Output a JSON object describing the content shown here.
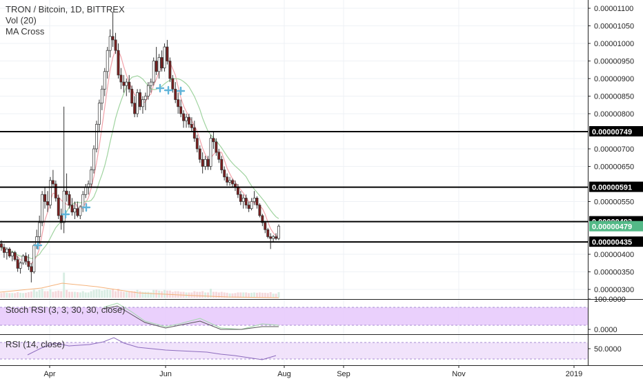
{
  "header": {
    "title": "TRON / Bitcoin, 1D, BITTREX",
    "indicators": [
      "Vol (20)",
      "MA Cross"
    ]
  },
  "panes": {
    "stoch_label": "Stoch RSI (3, 3, 30, 30, close)",
    "rsi_label": "RSI (14, close)",
    "stoch_ticks": [
      "100.0000",
      "0.0000"
    ],
    "rsi_ticks": [
      "50.0000"
    ]
  },
  "colors": {
    "up": "#53b987",
    "down": "#eb4d5c",
    "candle_body_up": "#ffffff",
    "candle_body_down": "#7a1f1f",
    "ma_fast": "#f2a0a8",
    "ma_slow": "#9fd39f",
    "cross": "#5fb4d9",
    "level_line": "#000000",
    "current_price_tag": "#53b987",
    "stoch_band": "#e6c8fb",
    "rsi_band": "#efe0fb"
  },
  "chart_data": {
    "type": "candlestick",
    "title": "TRON / Bitcoin, 1D, BITTREX",
    "y_ticks": [
      "0.00001100",
      "0.00001050",
      "0.00001000",
      "0.00000950",
      "0.00000900",
      "0.00000850",
      "0.00000800",
      "0.00000700",
      "0.00000650",
      "0.00000550",
      "0.00000400",
      "0.00000350",
      "0.00000300"
    ],
    "ylim": [
      2.8e-06,
      1.11e-05
    ],
    "x_ticks": [
      "Apr",
      "Jun",
      "Aug",
      "Sep",
      "Nov",
      "2019"
    ],
    "horizontal_levels": [
      "0.00000749",
      "0.00000591",
      "0.00000493",
      "0.00000435"
    ],
    "current_price": "0.00000479",
    "series": [
      {
        "x": "Mar 8",
        "o": 4.3,
        "h": 4.4,
        "l": 4.1,
        "c": 4.2
      },
      {
        "x": "Mar 9",
        "o": 4.2,
        "h": 4.3,
        "l": 3.9,
        "c": 4.05
      },
      {
        "x": "Mar 10",
        "o": 4.05,
        "h": 4.2,
        "l": 3.85,
        "c": 4.15
      },
      {
        "x": "Mar 11",
        "o": 4.15,
        "h": 4.2,
        "l": 3.9,
        "c": 3.95
      },
      {
        "x": "Mar 12",
        "o": 3.95,
        "h": 4.1,
        "l": 3.8,
        "c": 4.05
      },
      {
        "x": "Mar 13",
        "o": 4.05,
        "h": 4.1,
        "l": 3.8,
        "c": 3.85
      },
      {
        "x": "Mar 14",
        "o": 3.85,
        "h": 3.95,
        "l": 3.5,
        "c": 3.6
      },
      {
        "x": "Mar 15",
        "o": 3.6,
        "h": 3.8,
        "l": 3.45,
        "c": 3.75
      },
      {
        "x": "Mar 16",
        "o": 3.75,
        "h": 4.0,
        "l": 3.7,
        "c": 3.95
      },
      {
        "x": "Mar 17",
        "o": 3.95,
        "h": 4.05,
        "l": 3.7,
        "c": 3.8
      },
      {
        "x": "Mar 18",
        "o": 3.8,
        "h": 4.0,
        "l": 3.55,
        "c": 3.65
      },
      {
        "x": "Mar 19",
        "o": 3.65,
        "h": 3.75,
        "l": 3.2,
        "c": 3.5
      },
      {
        "x": "Mar 20",
        "o": 3.5,
        "h": 4.3,
        "l": 3.45,
        "c": 4.25
      },
      {
        "x": "Mar 21",
        "o": 4.25,
        "h": 4.7,
        "l": 4.15,
        "c": 4.5
      },
      {
        "x": "Mar 22",
        "o": 4.5,
        "h": 5.1,
        "l": 4.3,
        "c": 4.9
      },
      {
        "x": "Mar 23",
        "o": 4.9,
        "h": 5.8,
        "l": 4.8,
        "c": 5.7
      },
      {
        "x": "Mar 24",
        "o": 5.7,
        "h": 5.9,
        "l": 5.3,
        "c": 5.5
      },
      {
        "x": "Mar 25",
        "o": 5.5,
        "h": 5.8,
        "l": 5.2,
        "c": 5.4
      },
      {
        "x": "Mar 26",
        "o": 5.4,
        "h": 6.2,
        "l": 5.3,
        "c": 6.1
      },
      {
        "x": "Mar 27",
        "o": 6.1,
        "h": 6.4,
        "l": 5.9,
        "c": 6.0
      },
      {
        "x": "Mar 28",
        "o": 6.0,
        "h": 6.1,
        "l": 5.5,
        "c": 5.6
      },
      {
        "x": "Mar 29",
        "o": 5.6,
        "h": 5.7,
        "l": 5.0,
        "c": 5.1
      },
      {
        "x": "Mar 30",
        "o": 5.1,
        "h": 5.3,
        "l": 4.7,
        "c": 4.9
      },
      {
        "x": "Mar 31",
        "o": 4.9,
        "h": 8.2,
        "l": 4.6,
        "c": 5.8
      },
      {
        "x": "Apr 1",
        "o": 5.8,
        "h": 6.3,
        "l": 5.5,
        "c": 5.7
      },
      {
        "x": "Apr 2",
        "o": 5.7,
        "h": 5.8,
        "l": 5.3,
        "c": 5.4
      },
      {
        "x": "Apr 3",
        "o": 5.4,
        "h": 5.6,
        "l": 5.1,
        "c": 5.2
      },
      {
        "x": "Apr 4",
        "o": 5.2,
        "h": 5.5,
        "l": 5.0,
        "c": 5.3
      },
      {
        "x": "Apr 5",
        "o": 5.3,
        "h": 5.5,
        "l": 5.05,
        "c": 5.1
      },
      {
        "x": "Apr 6",
        "o": 5.1,
        "h": 5.4,
        "l": 5.0,
        "c": 5.35
      },
      {
        "x": "Apr 7",
        "o": 5.35,
        "h": 5.8,
        "l": 5.2,
        "c": 5.7
      },
      {
        "x": "Apr 8",
        "o": 5.7,
        "h": 6.0,
        "l": 5.6,
        "c": 5.9
      },
      {
        "x": "Apr 9",
        "o": 5.9,
        "h": 6.1,
        "l": 5.7,
        "c": 6.0
      },
      {
        "x": "Apr 10",
        "o": 6.0,
        "h": 6.5,
        "l": 5.9,
        "c": 6.4
      },
      {
        "x": "Apr 11",
        "o": 6.4,
        "h": 7.1,
        "l": 6.3,
        "c": 7.0
      },
      {
        "x": "Apr 12",
        "o": 7.0,
        "h": 7.8,
        "l": 6.9,
        "c": 7.7
      },
      {
        "x": "Apr 13",
        "o": 7.7,
        "h": 8.4,
        "l": 7.5,
        "c": 8.3
      },
      {
        "x": "Apr 14",
        "o": 8.3,
        "h": 8.8,
        "l": 8.1,
        "c": 8.7
      },
      {
        "x": "Apr 15",
        "o": 8.7,
        "h": 9.3,
        "l": 8.5,
        "c": 9.2
      },
      {
        "x": "Apr 16",
        "o": 9.2,
        "h": 9.9,
        "l": 9.0,
        "c": 9.8
      },
      {
        "x": "Apr 17",
        "o": 9.8,
        "h": 10.4,
        "l": 9.6,
        "c": 10.2
      },
      {
        "x": "Apr 18",
        "o": 10.2,
        "h": 10.9,
        "l": 9.9,
        "c": 10.1
      },
      {
        "x": "Apr 19",
        "o": 10.1,
        "h": 10.3,
        "l": 9.7,
        "c": 9.8
      },
      {
        "x": "Apr 20",
        "o": 9.8,
        "h": 10.0,
        "l": 9.0,
        "c": 9.1
      },
      {
        "x": "Apr 21",
        "o": 9.1,
        "h": 9.3,
        "l": 8.7,
        "c": 8.9
      },
      {
        "x": "Apr 22",
        "o": 8.9,
        "h": 9.1,
        "l": 8.6,
        "c": 8.8
      },
      {
        "x": "Apr 23",
        "o": 8.8,
        "h": 9.0,
        "l": 8.5,
        "c": 8.9
      },
      {
        "x": "Apr 24",
        "o": 8.9,
        "h": 9.1,
        "l": 8.6,
        "c": 8.7
      },
      {
        "x": "Apr 25",
        "o": 8.7,
        "h": 8.8,
        "l": 8.2,
        "c": 8.3
      },
      {
        "x": "Apr 26",
        "o": 8.3,
        "h": 8.5,
        "l": 7.9,
        "c": 8.0
      },
      {
        "x": "Apr 27",
        "o": 8.0,
        "h": 8.7,
        "l": 7.9,
        "c": 8.6
      },
      {
        "x": "Apr 28",
        "o": 8.6,
        "h": 8.7,
        "l": 8.1,
        "c": 8.2
      },
      {
        "x": "Apr 29",
        "o": 8.2,
        "h": 8.5,
        "l": 8.0,
        "c": 8.4
      },
      {
        "x": "Apr 30",
        "o": 8.4,
        "h": 8.6,
        "l": 8.1,
        "c": 8.5
      },
      {
        "x": "May 1",
        "o": 8.5,
        "h": 8.9,
        "l": 8.4,
        "c": 8.8
      },
      {
        "x": "May 2",
        "o": 8.8,
        "h": 9.0,
        "l": 8.6,
        "c": 8.9
      },
      {
        "x": "May 3",
        "o": 8.9,
        "h": 9.6,
        "l": 8.8,
        "c": 9.5
      },
      {
        "x": "May 4",
        "o": 9.5,
        "h": 9.9,
        "l": 9.1,
        "c": 9.2
      },
      {
        "x": "May 5",
        "o": 9.2,
        "h": 9.7,
        "l": 9.0,
        "c": 9.6
      },
      {
        "x": "May 6",
        "o": 9.6,
        "h": 9.8,
        "l": 9.2,
        "c": 9.3
      },
      {
        "x": "May 7",
        "o": 9.3,
        "h": 10.0,
        "l": 9.2,
        "c": 9.9
      },
      {
        "x": "May 8",
        "o": 9.9,
        "h": 10.1,
        "l": 9.4,
        "c": 9.5
      },
      {
        "x": "May 9",
        "o": 9.5,
        "h": 9.6,
        "l": 8.9,
        "c": 9.0
      },
      {
        "x": "May 10",
        "o": 9.0,
        "h": 9.1,
        "l": 8.6,
        "c": 8.7
      },
      {
        "x": "May 11",
        "o": 8.7,
        "h": 8.9,
        "l": 8.3,
        "c": 8.4
      },
      {
        "x": "May 12",
        "o": 8.4,
        "h": 8.6,
        "l": 8.0,
        "c": 8.2
      },
      {
        "x": "May 13",
        "o": 8.2,
        "h": 8.4,
        "l": 7.9,
        "c": 8.0
      },
      {
        "x": "May 14",
        "o": 8.0,
        "h": 8.1,
        "l": 7.6,
        "c": 7.8
      },
      {
        "x": "May 15",
        "o": 7.8,
        "h": 8.0,
        "l": 7.6,
        "c": 7.9
      },
      {
        "x": "May 16",
        "o": 7.9,
        "h": 8.0,
        "l": 7.6,
        "c": 7.7
      },
      {
        "x": "May 17",
        "o": 7.7,
        "h": 7.9,
        "l": 7.5,
        "c": 7.6
      },
      {
        "x": "May 18",
        "o": 7.6,
        "h": 7.8,
        "l": 7.2,
        "c": 7.3
      },
      {
        "x": "May 19",
        "o": 7.3,
        "h": 7.4,
        "l": 6.9,
        "c": 7.0
      },
      {
        "x": "May 20",
        "o": 7.0,
        "h": 7.1,
        "l": 6.6,
        "c": 6.7
      },
      {
        "x": "May 21",
        "o": 6.7,
        "h": 6.9,
        "l": 6.3,
        "c": 6.5
      },
      {
        "x": "May 22",
        "o": 6.5,
        "h": 6.8,
        "l": 6.4,
        "c": 6.7
      },
      {
        "x": "May 23",
        "o": 6.7,
        "h": 6.8,
        "l": 6.4,
        "c": 6.5
      },
      {
        "x": "May 24",
        "o": 6.5,
        "h": 7.4,
        "l": 6.4,
        "c": 7.3
      },
      {
        "x": "May 25",
        "o": 7.3,
        "h": 7.5,
        "l": 7.0,
        "c": 7.2
      },
      {
        "x": "May 26",
        "o": 7.2,
        "h": 7.3,
        "l": 6.8,
        "c": 6.9
      },
      {
        "x": "May 27",
        "o": 6.9,
        "h": 7.0,
        "l": 6.6,
        "c": 6.7
      },
      {
        "x": "May 28",
        "o": 6.7,
        "h": 6.8,
        "l": 6.3,
        "c": 6.4
      },
      {
        "x": "May 29",
        "o": 6.4,
        "h": 6.5,
        "l": 6.1,
        "c": 6.2
      },
      {
        "x": "May 30",
        "o": 6.2,
        "h": 6.3,
        "l": 5.95,
        "c": 6.05
      },
      {
        "x": "May 31",
        "o": 6.05,
        "h": 6.2,
        "l": 5.95,
        "c": 6.1
      },
      {
        "x": "Jun 1",
        "o": 6.1,
        "h": 6.15,
        "l": 5.9,
        "c": 6.0
      },
      {
        "x": "Jun 2",
        "o": 6.0,
        "h": 6.1,
        "l": 5.8,
        "c": 5.9
      },
      {
        "x": "Jun 3",
        "o": 5.9,
        "h": 6.0,
        "l": 5.6,
        "c": 5.7
      },
      {
        "x": "Jun 4",
        "o": 5.7,
        "h": 5.8,
        "l": 5.4,
        "c": 5.5
      },
      {
        "x": "Jun 5",
        "o": 5.5,
        "h": 5.7,
        "l": 5.3,
        "c": 5.6
      },
      {
        "x": "Jun 6",
        "o": 5.6,
        "h": 5.7,
        "l": 5.3,
        "c": 5.4
      },
      {
        "x": "Jun 7",
        "o": 5.4,
        "h": 5.5,
        "l": 5.2,
        "c": 5.3
      },
      {
        "x": "Jun 8",
        "o": 5.3,
        "h": 5.6,
        "l": 5.25,
        "c": 5.5
      },
      {
        "x": "Jun 9",
        "o": 5.5,
        "h": 5.8,
        "l": 5.4,
        "c": 5.6
      },
      {
        "x": "Jun 10",
        "o": 5.6,
        "h": 5.65,
        "l": 5.3,
        "c": 5.4
      },
      {
        "x": "Jun 11",
        "o": 5.4,
        "h": 5.45,
        "l": 5.05,
        "c": 5.1
      },
      {
        "x": "Jun 12",
        "o": 5.1,
        "h": 5.15,
        "l": 4.8,
        "c": 4.9
      },
      {
        "x": "Jun 13",
        "o": 4.9,
        "h": 4.95,
        "l": 4.6,
        "c": 4.7
      },
      {
        "x": "Jun 14",
        "o": 4.7,
        "h": 4.75,
        "l": 4.45,
        "c": 4.5
      },
      {
        "x": "Jun 15",
        "o": 4.5,
        "h": 4.6,
        "l": 4.15,
        "c": 4.45
      },
      {
        "x": "Jun 16",
        "o": 4.45,
        "h": 4.55,
        "l": 4.35,
        "c": 4.5
      },
      {
        "x": "Jun 17",
        "o": 4.5,
        "h": 4.6,
        "l": 4.4,
        "c": 4.45
      },
      {
        "x": "Jun 18",
        "o": 4.45,
        "h": 4.85,
        "l": 4.4,
        "c": 4.8
      }
    ]
  }
}
